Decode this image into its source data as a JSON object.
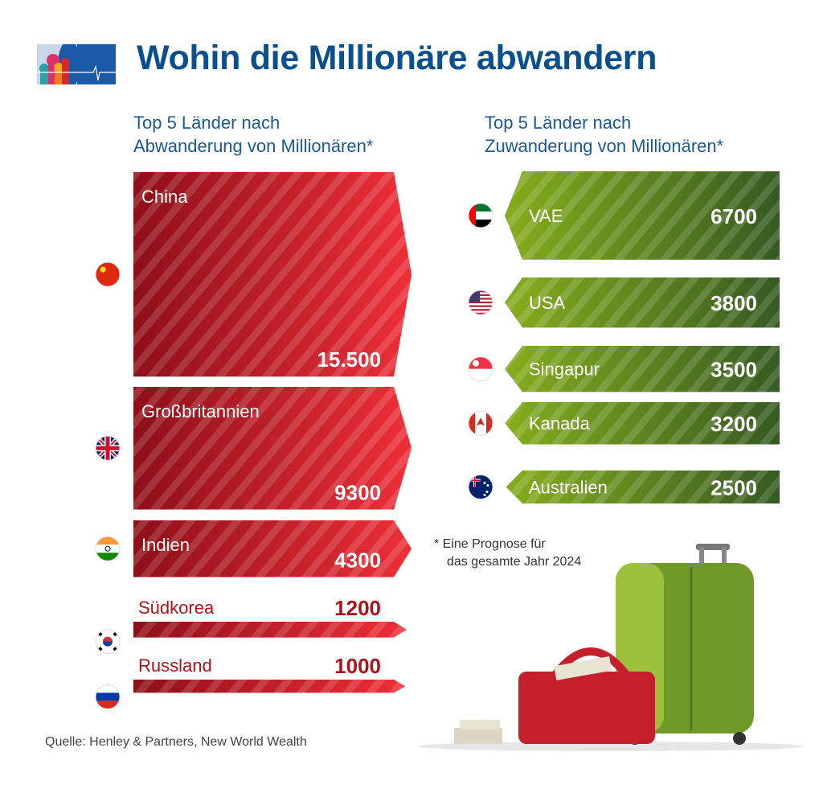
{
  "header": {
    "title": "Wohin die Millionäre abwandern",
    "logo": "moscow-domes-heartbeat-logo"
  },
  "chart_data": [
    {
      "type": "bar",
      "title": "Top 5 Länder nach Abwanderung von Millionären*",
      "title_lines": [
        "Top 5 Länder nach",
        "Abwanderung von Millionären*"
      ],
      "orientation": "horizontal-stacked-arrows",
      "color": "#d0202a",
      "categories": [
        "China",
        "Großbritannien",
        "Indien",
        "Südkorea",
        "Russland"
      ],
      "values": [
        15500,
        9300,
        4300,
        1200,
        1000
      ],
      "data_labels": [
        "15.500",
        "9300",
        "4300",
        "1200",
        "1000"
      ],
      "flags": [
        "china-flag",
        "uk-flag",
        "india-flag",
        "south-korea-flag",
        "russia-flag"
      ]
    },
    {
      "type": "bar",
      "title": "Top 5 Länder nach Zuwanderung von Millionären*",
      "title_lines": [
        "Top 5 Länder nach",
        "Zuwanderung von Millionären*"
      ],
      "orientation": "horizontal-stacked-arrows",
      "color": "#5e8f1e",
      "categories": [
        "VAE",
        "USA",
        "Singapur",
        "Kanada",
        "Australien"
      ],
      "values": [
        6700,
        3800,
        3500,
        3200,
        2500
      ],
      "data_labels": [
        "6700",
        "3800",
        "3500",
        "3200",
        "2500"
      ],
      "flags": [
        "uae-flag",
        "usa-flag",
        "singapore-flag",
        "canada-flag",
        "australia-flag"
      ]
    }
  ],
  "footnote": {
    "line1": "* Eine Prognose für",
    "line2": "das gesamte Jahr 2024"
  },
  "source": "Quelle: Henley & Partners, New World Wealth"
}
